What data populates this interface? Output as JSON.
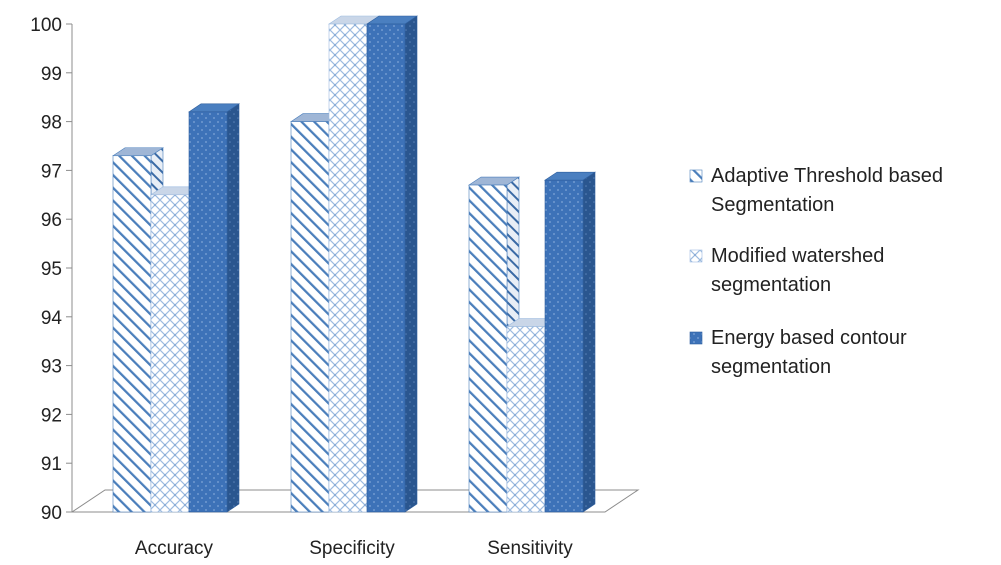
{
  "chart_data": {
    "type": "bar",
    "categories": [
      "Accuracy",
      "Specificity",
      "Sensitivity"
    ],
    "series": [
      {
        "name": "Adaptive Threshold based Segmentation",
        "legend_lines": [
          "Adaptive Threshold based",
          "Segmentation"
        ],
        "values": [
          97.3,
          98.0,
          96.7
        ],
        "pattern": "diagonal-hatch",
        "color": "#4a7ebb"
      },
      {
        "name": "Modified watershed segmentation",
        "legend_lines": [
          "Modified watershed",
          "segmentation"
        ],
        "values": [
          96.5,
          100.0,
          93.8
        ],
        "pattern": "crosshatch",
        "color": "#9dbbe0"
      },
      {
        "name": "Energy based contour segmentation",
        "legend_lines": [
          "Energy based contour",
          "segmentation"
        ],
        "values": [
          98.2,
          100.0,
          96.8
        ],
        "pattern": "dotted-solid",
        "color": "#3d72b8"
      }
    ],
    "ylim": [
      90,
      100
    ],
    "yticks": [
      "90",
      "91",
      "92",
      "93",
      "94",
      "95",
      "96",
      "97",
      "98",
      "99",
      "100"
    ],
    "style": "3d-clustered-column",
    "legend_position": "right",
    "grid": false
  }
}
